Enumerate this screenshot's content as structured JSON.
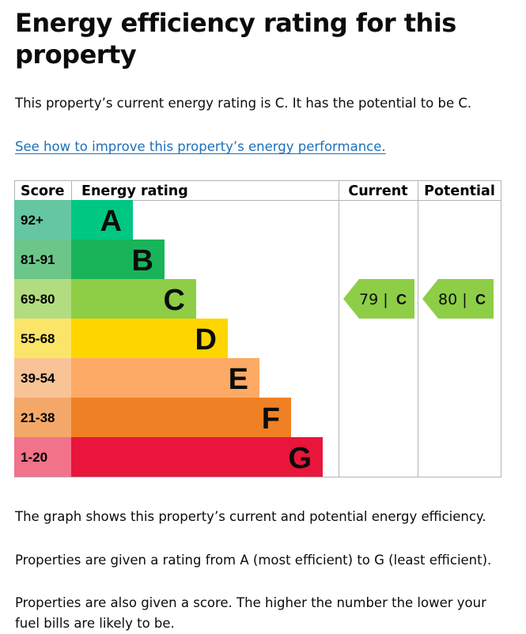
{
  "heading": "Energy efficiency rating for this property",
  "intro": "This property’s current energy rating is C. It has the potential to be C.",
  "improve_link": "See how to improve this property’s energy performance.",
  "chart_data": {
    "type": "bar",
    "headers": {
      "score": "Score",
      "rating": "Energy rating",
      "current": "Current",
      "potential": "Potential"
    },
    "bands": [
      {
        "letter": "A",
        "range": "92+",
        "color": "#00c781",
        "score_color": "#64c7a1"
      },
      {
        "letter": "B",
        "range": "81-91",
        "color": "#19b459",
        "score_color": "#6cc68a"
      },
      {
        "letter": "C",
        "range": "69-80",
        "color": "#8dce46",
        "score_color": "#b3dc81"
      },
      {
        "letter": "D",
        "range": "55-68",
        "color": "#ffd500",
        "score_color": "#fbe568"
      },
      {
        "letter": "E",
        "range": "39-54",
        "color": "#fcaa65",
        "score_color": "#f8c496"
      },
      {
        "letter": "F",
        "range": "21-38",
        "color": "#ef8023",
        "score_color": "#f3a86a"
      },
      {
        "letter": "G",
        "range": "1-20",
        "color": "#e9153b",
        "score_color": "#f2728a"
      }
    ],
    "current": {
      "score": 79,
      "band": "C",
      "label": "79 |",
      "letter": "C"
    },
    "potential": {
      "score": 80,
      "band": "C",
      "label": "80 |",
      "letter": "C"
    },
    "marker_color": "#8dce46"
  },
  "notes": [
    "The graph shows this property’s current and potential energy efficiency.",
    "Properties are given a rating from A (most efficient) to G (least efficient).",
    "Properties are also given a score. The higher the number the lower your fuel bills are likely to be."
  ]
}
